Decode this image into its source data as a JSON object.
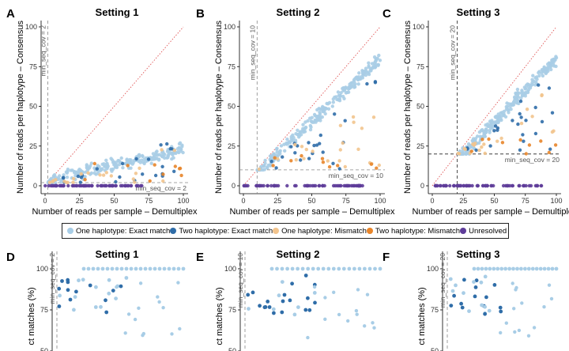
{
  "colors": {
    "One haplotype: Exact match": "#a8cde6",
    "Two haplotype: Exact match": "#2f6da8",
    "One haplotype: Mismatch": "#f2c48d",
    "Two haplotype: Mismatch": "#e8852a",
    "Unresolved": "#5e3c99"
  },
  "legend": [
    {
      "label": "One haplotype: Exact match",
      "color": "#a8cde6"
    },
    {
      "label": "Two haplotype: Exact match",
      "color": "#2f6da8"
    },
    {
      "label": "One haplotype: Mismatch",
      "color": "#f2c48d"
    },
    {
      "label": "Two haplotype: Mismatch",
      "color": "#e8852a"
    },
    {
      "label": "Unresolved",
      "color": "#5e3c99"
    }
  ],
  "chart_data": [
    {
      "panel": "A",
      "title": "Setting 1",
      "type": "scatter",
      "xlabel": "Number of reads per sample – Demultiplex",
      "ylabel": "Number of reads per haplotype – Consensus",
      "xlim": [
        0,
        100
      ],
      "ylim": [
        0,
        100
      ],
      "xticks": [
        "0",
        "25",
        "50",
        "75",
        "100"
      ],
      "yticks": [
        "0",
        "25",
        "50",
        "75",
        "100"
      ],
      "threshold": 2,
      "threshold_labels": {
        "x": "min_seq_cov = 2",
        "y": "min_seq_cov = 2"
      },
      "identity_line": true
    },
    {
      "panel": "B",
      "title": "Setting 2",
      "type": "scatter",
      "xlabel": "Number of reads per sample – Demultiplex",
      "ylabel": "Number of reads per haplotype – Consensus",
      "xlim": [
        0,
        100
      ],
      "ylim": [
        0,
        100
      ],
      "xticks": [
        "0",
        "25",
        "50",
        "75",
        "100"
      ],
      "yticks": [
        "0",
        "25",
        "50",
        "75",
        "100"
      ],
      "threshold": 10,
      "threshold_labels": {
        "x": "min_seq_cov = 10",
        "y": "min_seq_cov = 10"
      },
      "identity_line": true
    },
    {
      "panel": "C",
      "title": "Setting 3",
      "type": "scatter",
      "xlabel": "Number of reads per sample – Demultiplex",
      "ylabel": "Number of reads per haplotype – Consensus",
      "xlim": [
        0,
        100
      ],
      "ylim": [
        0,
        100
      ],
      "xticks": [
        "0",
        "25",
        "50",
        "75",
        "100"
      ],
      "yticks": [
        "0",
        "25",
        "50",
        "75",
        "100"
      ],
      "threshold": 20,
      "threshold_labels": {
        "x": "min_seq_cov = 20",
        "y": "min_seq_cov = 20"
      },
      "identity_line": true
    },
    {
      "panel": "D",
      "title": "Setting 1",
      "type": "scatter",
      "ylabel": "ct matches (%)",
      "yticks": [
        "100",
        "75",
        "50"
      ],
      "threshold": 2,
      "threshold_labels": {
        "x": "min_seq_cov = 2"
      }
    },
    {
      "panel": "E",
      "title": "Setting 2",
      "type": "scatter",
      "ylabel": "ct matches (%)",
      "yticks": [
        "100",
        "75",
        "50"
      ],
      "threshold": 10,
      "threshold_labels": {
        "x": "min_seq_cov = 10"
      }
    },
    {
      "panel": "F",
      "title": "Setting 3",
      "type": "scatter",
      "ylabel": "ct matches (%)",
      "yticks": [
        "100",
        "75",
        "50"
      ],
      "threshold": 20,
      "threshold_labels": {
        "x": "min_seq_cov = 20"
      }
    }
  ]
}
